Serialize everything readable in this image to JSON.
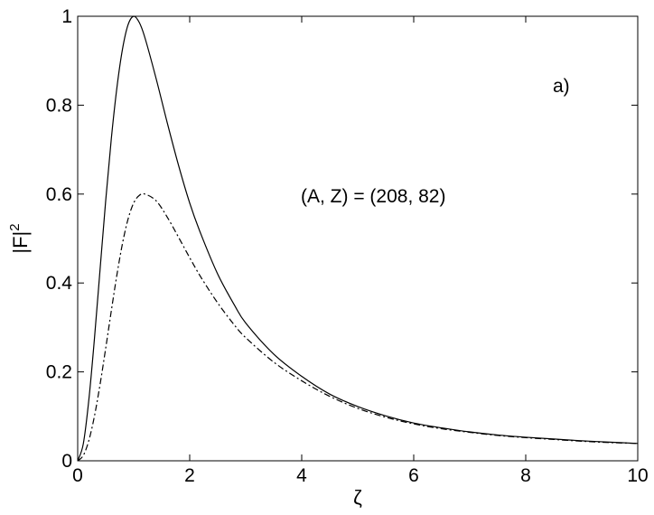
{
  "chart_data": {
    "type": "line",
    "title": "",
    "xlabel": "ζ",
    "ylabel": "|F|",
    "ylabel_superscript": "2",
    "xlim": [
      0,
      10
    ],
    "ylim": [
      0,
      1
    ],
    "x_ticks": [
      0,
      2,
      4,
      6,
      8,
      10
    ],
    "y_ticks": [
      0,
      0.2,
      0.4,
      0.6,
      0.8,
      1
    ],
    "x_tick_labels": [
      "0",
      "2",
      "4",
      "6",
      "8",
      "10"
    ],
    "y_tick_labels": [
      "0",
      "0.2",
      "0.4",
      "0.6",
      "0.8",
      "1"
    ],
    "grid": false,
    "annotations": [
      "a)",
      "(A, Z) = (208, 82)"
    ],
    "series": [
      {
        "style": "solid",
        "color": "#000000",
        "x": [
          0,
          0.1,
          0.2,
          0.3,
          0.4,
          0.5,
          0.6,
          0.7,
          0.8,
          0.9,
          1.0,
          1.1,
          1.2,
          1.4,
          1.6,
          1.8,
          2.0,
          2.2,
          2.5,
          2.8,
          3.0,
          3.5,
          4.0,
          4.5,
          5.0,
          5.5,
          6.0,
          6.5,
          7.0,
          7.5,
          8.0,
          8.5,
          9.0,
          9.5,
          10.0
        ],
        "values": [
          0,
          0.038,
          0.138,
          0.276,
          0.431,
          0.585,
          0.724,
          0.839,
          0.926,
          0.981,
          1.0,
          0.986,
          0.952,
          0.86,
          0.76,
          0.665,
          0.58,
          0.51,
          0.42,
          0.35,
          0.31,
          0.24,
          0.19,
          0.15,
          0.122,
          0.101,
          0.085,
          0.074,
          0.065,
          0.058,
          0.053,
          0.049,
          0.045,
          0.042,
          0.039
        ]
      },
      {
        "style": "dash-dot",
        "color": "#000000",
        "x": [
          0,
          0.1,
          0.2,
          0.3,
          0.4,
          0.5,
          0.6,
          0.7,
          0.8,
          0.9,
          1.0,
          1.1,
          1.2,
          1.4,
          1.6,
          1.8,
          2.0,
          2.2,
          2.5,
          2.8,
          3.0,
          3.5,
          4.0,
          4.5,
          5.0,
          5.5,
          6.0,
          6.5,
          7.0,
          7.5,
          8.0,
          8.5,
          9.0,
          9.5,
          10.0
        ],
        "values": [
          0,
          0.012,
          0.046,
          0.101,
          0.172,
          0.253,
          0.337,
          0.418,
          0.489,
          0.544,
          0.58,
          0.597,
          0.6,
          0.585,
          0.548,
          0.503,
          0.457,
          0.413,
          0.355,
          0.305,
          0.277,
          0.222,
          0.18,
          0.145,
          0.118,
          0.098,
          0.083,
          0.072,
          0.064,
          0.057,
          0.052,
          0.048,
          0.044,
          0.041,
          0.039
        ]
      }
    ]
  }
}
